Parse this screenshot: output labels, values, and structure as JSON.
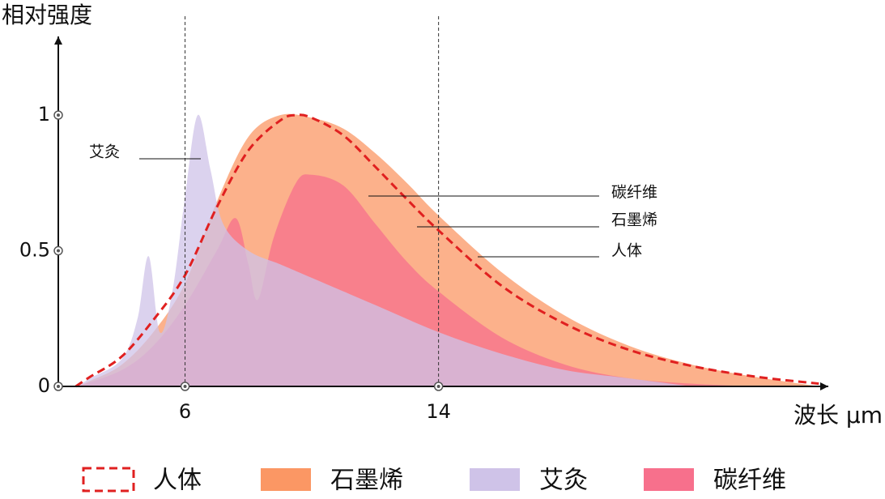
{
  "chart_data": {
    "type": "area",
    "y_label": "相对强度",
    "x_label": "波长 μm",
    "xlim": [
      2,
      26.3
    ],
    "ylim": [
      0,
      1.29
    ],
    "xticks": [
      6,
      14
    ],
    "yticks": [
      0,
      0.5,
      1
    ],
    "series": [
      {
        "name": "石墨烯",
        "color": "#fb9764",
        "line_style": "area",
        "x": [
          2.6,
          3,
          4,
          5,
          6,
          7,
          8,
          9,
          10,
          11,
          12,
          13,
          14,
          16,
          18,
          20,
          22,
          24,
          26
        ],
        "values": [
          0,
          0.02,
          0.08,
          0.2,
          0.38,
          0.68,
          0.92,
          1.0,
          0.99,
          0.95,
          0.86,
          0.75,
          0.63,
          0.42,
          0.26,
          0.15,
          0.08,
          0.035,
          0
        ]
      },
      {
        "name": "碳纤维",
        "color": "#f7708c",
        "line_style": "area",
        "x": [
          2.6,
          4,
          5,
          6,
          7,
          7.6,
          8,
          8.3,
          8.8,
          9.5,
          10,
          11,
          12,
          13,
          14,
          16,
          18,
          20,
          22,
          24
        ],
        "values": [
          0,
          0.06,
          0.15,
          0.3,
          0.5,
          0.62,
          0.45,
          0.32,
          0.55,
          0.75,
          0.78,
          0.74,
          0.6,
          0.46,
          0.35,
          0.18,
          0.08,
          0.03,
          0.01,
          0
        ]
      },
      {
        "name": "艾灸",
        "color": "#cfc3e8",
        "line_style": "area",
        "x": [
          2.6,
          3,
          4,
          4.5,
          4.85,
          5.2,
          5.6,
          6,
          6.4,
          6.8,
          7.2,
          8,
          9,
          10,
          12,
          14,
          16,
          18,
          20,
          22
        ],
        "values": [
          0,
          0.03,
          0.1,
          0.25,
          0.48,
          0.2,
          0.35,
          0.7,
          1.0,
          0.8,
          0.6,
          0.5,
          0.45,
          0.4,
          0.3,
          0.2,
          0.12,
          0.06,
          0.03,
          0
        ]
      },
      {
        "name": "人体",
        "color": "#e02020",
        "line_style": "dashed",
        "x": [
          2.55,
          3,
          4,
          5,
          6,
          7,
          8,
          9,
          9.5,
          10,
          11,
          12,
          13,
          14,
          16,
          18,
          20,
          22,
          24,
          26
        ],
        "values": [
          0,
          0.035,
          0.11,
          0.245,
          0.41,
          0.66,
          0.87,
          0.98,
          1.0,
          0.99,
          0.925,
          0.81,
          0.69,
          0.575,
          0.37,
          0.23,
          0.135,
          0.075,
          0.036,
          0.01
        ]
      }
    ]
  }
}
